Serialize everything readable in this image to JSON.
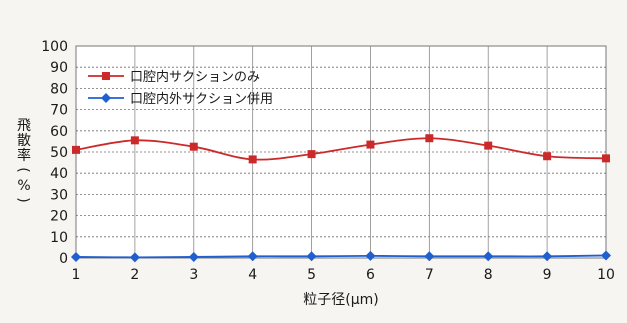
{
  "chart_data": {
    "type": "line",
    "title": "",
    "xlabel": "粒子径(μm)",
    "ylabel": "飛散率(%)",
    "x": [
      1,
      2,
      3,
      4,
      5,
      6,
      7,
      8,
      9,
      10
    ],
    "ylim": [
      0,
      100
    ],
    "yticks": [
      0,
      10,
      20,
      30,
      40,
      50,
      60,
      70,
      80,
      90,
      100
    ],
    "grid": true,
    "legend_position": "top-left",
    "series": [
      {
        "name": "口腔内サクションのみ",
        "color": "#cc2a2a",
        "marker": "square",
        "values": [
          51,
          55.5,
          52.5,
          46.5,
          49,
          53.5,
          56.5,
          53,
          48,
          47
        ]
      },
      {
        "name": "口腔内外サクション併用",
        "color": "#1f5fd0",
        "marker": "diamond",
        "values": [
          0.5,
          0.3,
          0.5,
          0.8,
          0.8,
          1.0,
          0.8,
          0.8,
          0.8,
          1.2
        ]
      }
    ]
  }
}
